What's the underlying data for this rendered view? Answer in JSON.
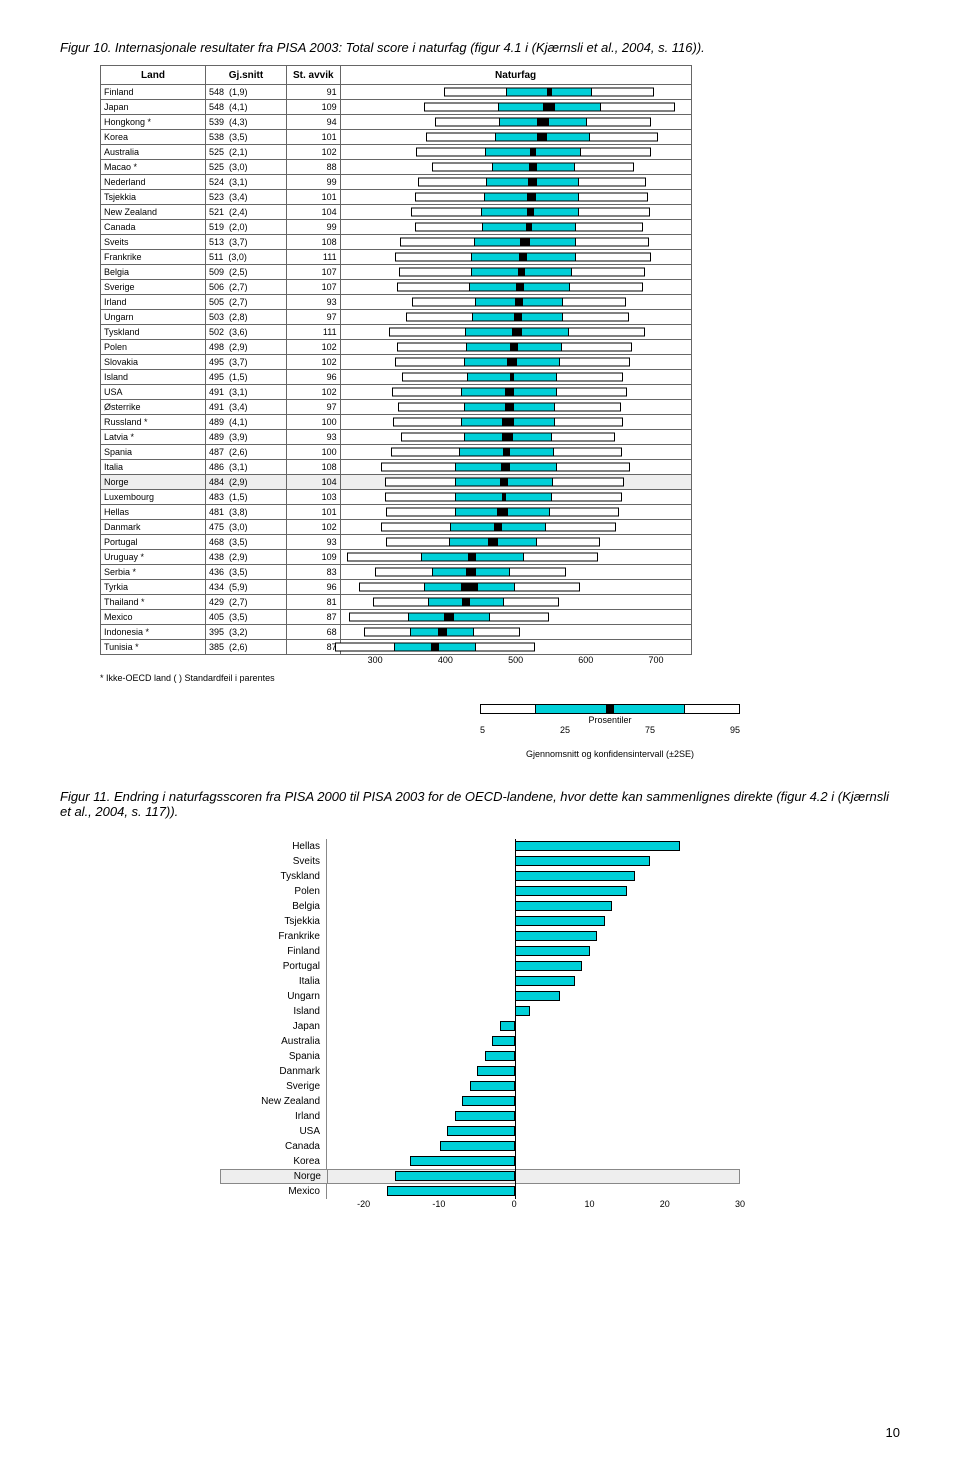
{
  "captions": {
    "fig10": "Figur 10. Internasjonale resultater fra PISA 2003: Total score i naturfag (figur 4.1 i (Kjærnsli et al., 2004, s. 116)).",
    "fig11": "Figur 11. Endring i naturfagsscoren fra PISA 2000 til PISA 2003 for de OECD-landene, hvor dette kan sammenlignes direkte (figur 4.2 i (Kjærnsli et al., 2004, s. 117))."
  },
  "fig10": {
    "headers": {
      "land": "Land",
      "snitt": "Gj.snitt",
      "std": "St. avvik",
      "chart": "Naturfag"
    },
    "xmin": 250,
    "xmax": 750,
    "ticks": [
      300,
      400,
      500,
      600,
      700
    ],
    "rows": [
      {
        "land": "Finland",
        "mean": 548,
        "se": 1.9,
        "sd": 91
      },
      {
        "land": "Japan",
        "mean": 548,
        "se": 4.1,
        "sd": 109
      },
      {
        "land": "Hongkong *",
        "mean": 539,
        "se": 4.3,
        "sd": 94
      },
      {
        "land": "Korea",
        "mean": 538,
        "se": 3.5,
        "sd": 101
      },
      {
        "land": "Australia",
        "mean": 525,
        "se": 2.1,
        "sd": 102
      },
      {
        "land": "Macao *",
        "mean": 525,
        "se": 3.0,
        "sd": 88
      },
      {
        "land": "Nederland",
        "mean": 524,
        "se": 3.1,
        "sd": 99
      },
      {
        "land": "Tsjekkia",
        "mean": 523,
        "se": 3.4,
        "sd": 101
      },
      {
        "land": "New Zealand",
        "mean": 521,
        "se": 2.4,
        "sd": 104
      },
      {
        "land": "Canada",
        "mean": 519,
        "se": 2.0,
        "sd": 99
      },
      {
        "land": "Sveits",
        "mean": 513,
        "se": 3.7,
        "sd": 108
      },
      {
        "land": "Frankrike",
        "mean": 511,
        "se": 3.0,
        "sd": 111
      },
      {
        "land": "Belgia",
        "mean": 509,
        "se": 2.5,
        "sd": 107
      },
      {
        "land": "Sverige",
        "mean": 506,
        "se": 2.7,
        "sd": 107
      },
      {
        "land": "Irland",
        "mean": 505,
        "se": 2.7,
        "sd": 93
      },
      {
        "land": "Ungarn",
        "mean": 503,
        "se": 2.8,
        "sd": 97
      },
      {
        "land": "Tyskland",
        "mean": 502,
        "se": 3.6,
        "sd": 111
      },
      {
        "land": "Polen",
        "mean": 498,
        "se": 2.9,
        "sd": 102
      },
      {
        "land": "Slovakia",
        "mean": 495,
        "se": 3.7,
        "sd": 102
      },
      {
        "land": "Island",
        "mean": 495,
        "se": 1.5,
        "sd": 96
      },
      {
        "land": "USA",
        "mean": 491,
        "se": 3.1,
        "sd": 102
      },
      {
        "land": "Østerrike",
        "mean": 491,
        "se": 3.4,
        "sd": 97
      },
      {
        "land": "Russland *",
        "mean": 489,
        "se": 4.1,
        "sd": 100
      },
      {
        "land": "Latvia *",
        "mean": 489,
        "se": 3.9,
        "sd": 93
      },
      {
        "land": "Spania",
        "mean": 487,
        "se": 2.6,
        "sd": 100
      },
      {
        "land": "Italia",
        "mean": 486,
        "se": 3.1,
        "sd": 108
      },
      {
        "land": "Norge",
        "mean": 484,
        "se": 2.9,
        "sd": 104,
        "hl": true
      },
      {
        "land": "Luxembourg",
        "mean": 483,
        "se": 1.5,
        "sd": 103
      },
      {
        "land": "Hellas",
        "mean": 481,
        "se": 3.8,
        "sd": 101
      },
      {
        "land": "Danmark",
        "mean": 475,
        "se": 3.0,
        "sd": 102
      },
      {
        "land": "Portugal",
        "mean": 468,
        "se": 3.5,
        "sd": 93
      },
      {
        "land": "Uruguay *",
        "mean": 438,
        "se": 2.9,
        "sd": 109
      },
      {
        "land": "Serbia *",
        "mean": 436,
        "se": 3.5,
        "sd": 83
      },
      {
        "land": "Tyrkia",
        "mean": 434,
        "se": 5.9,
        "sd": 96
      },
      {
        "land": "Thailand *",
        "mean": 429,
        "se": 2.7,
        "sd": 81
      },
      {
        "land": "Mexico",
        "mean": 405,
        "se": 3.5,
        "sd": 87
      },
      {
        "land": "Indonesia *",
        "mean": 395,
        "se": 3.2,
        "sd": 68
      },
      {
        "land": "Tunisia *",
        "mean": 385,
        "se": 2.6,
        "sd": 87
      }
    ],
    "footnote": "* Ikke-OECD land   ( ) Standardfeil i parentes",
    "legend": {
      "title": "Prosentiler",
      "p": [
        "5",
        "25",
        "75",
        "95"
      ],
      "ci": "Gjennomsnitt og konfidensintervall (±2SE)"
    }
  },
  "fig11": {
    "xmin": -25,
    "xmax": 30,
    "ticks": [
      -20,
      -10,
      0,
      10,
      20,
      30
    ],
    "rows": [
      {
        "land": "Hellas",
        "v": 22
      },
      {
        "land": "Sveits",
        "v": 18
      },
      {
        "land": "Tyskland",
        "v": 16
      },
      {
        "land": "Polen",
        "v": 15
      },
      {
        "land": "Belgia",
        "v": 13
      },
      {
        "land": "Tsjekkia",
        "v": 12
      },
      {
        "land": "Frankrike",
        "v": 11
      },
      {
        "land": "Finland",
        "v": 10
      },
      {
        "land": "Portugal",
        "v": 9
      },
      {
        "land": "Italia",
        "v": 8
      },
      {
        "land": "Ungarn",
        "v": 6
      },
      {
        "land": "Island",
        "v": 2
      },
      {
        "land": "Japan",
        "v": -2
      },
      {
        "land": "Australia",
        "v": -3
      },
      {
        "land": "Spania",
        "v": -4
      },
      {
        "land": "Danmark",
        "v": -5
      },
      {
        "land": "Sverige",
        "v": -6
      },
      {
        "land": "New Zealand",
        "v": -7
      },
      {
        "land": "Irland",
        "v": -8
      },
      {
        "land": "USA",
        "v": -9
      },
      {
        "land": "Canada",
        "v": -10
      },
      {
        "land": "Korea",
        "v": -14
      },
      {
        "land": "Norge",
        "v": -16,
        "hl": true
      },
      {
        "land": "Mexico",
        "v": -17
      }
    ]
  },
  "pageNumber": "10"
}
